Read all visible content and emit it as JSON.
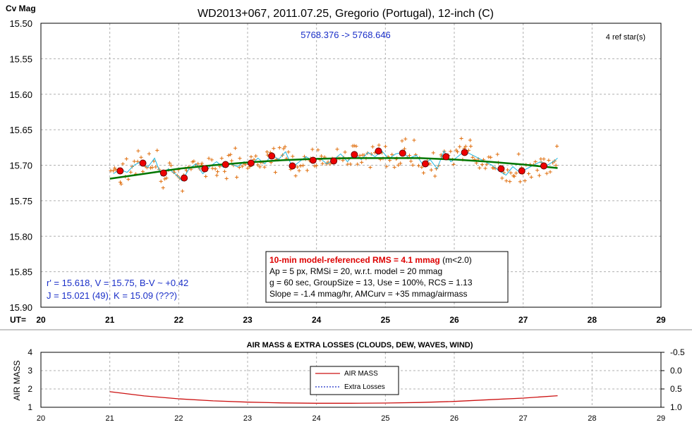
{
  "colors": {
    "frame": "#000000",
    "grid": "#b0b0b0",
    "scatter": "#e07010",
    "binned_fill": "#ee0000",
    "binned_stroke": "#6a0000",
    "smooth_line": "#22b8e0",
    "model_line": "#007700",
    "info_blue": "#1a2fc8",
    "rms_red": "#dd0000",
    "airmass_line": "#cc1111",
    "losses_line": "#1a2fc8"
  },
  "main_chart": {
    "title": "WD2013+067, 2011.07.25, Gregorio (Portugal), 12-inch (C)",
    "ylabel": "Cv Mag",
    "xlabel": "UT=",
    "x_ticks": [
      "20",
      "21",
      "22",
      "23",
      "24",
      "25",
      "26",
      "27",
      "28",
      "29"
    ],
    "y_ticks": [
      "15.50",
      "15.55",
      "15.60",
      "15.65",
      "15.70",
      "15.75",
      "15.80",
      "15.85",
      "15.90"
    ],
    "jd_range": "5768.376 -> 5768.646",
    "ref_stars": "4 ref star(s)",
    "mags_line1": "r' = 15.618, V = 15.75, B-V ~ +0.42",
    "mags_line2": "J = 15.021 (49), K = 15.09  (???)",
    "info": {
      "rms_headline": "10-min model-referenced RMS = 4.1 mmag",
      "rms_note": " (m<2.0)",
      "line2": "Ap = 5 px, RMSi = 20, w.r.t. model = 20 mmag",
      "line3": "g = 60 sec, GroupSize = 13, Use = 100%, RCS = 1.13",
      "line4": "Slope = -1.4 mmag/hr, AMCurv = +35 mmag/airmass"
    }
  },
  "air_chart": {
    "title": "AIR MASS & EXTRA LOSSES (CLOUDS, DEW, WAVES, WIND)",
    "ylabel": "AIR MASS",
    "x_ticks": [
      "20",
      "21",
      "22",
      "23",
      "24",
      "25",
      "26",
      "27",
      "28",
      "29"
    ],
    "y_ticks_left": [
      "1",
      "2",
      "3",
      "4"
    ],
    "y_ticks_right": [
      "1.0",
      "0.5",
      "0.0",
      "-0.5"
    ],
    "legend": [
      "AIR MASS",
      "Extra Losses"
    ]
  },
  "chart_data": [
    {
      "type": "scatter",
      "title": "WD2013+067, 2011.07.25, Gregorio (Portugal), 12-inch (C)",
      "xlabel": "UT=",
      "ylabel": "Cv Mag",
      "xlim": [
        20,
        29
      ],
      "ylim": [
        15.5,
        15.9
      ],
      "y_inverted": true,
      "grid": true,
      "series": [
        {
          "kind": "binned",
          "x": [
            21.15,
            21.48,
            21.78,
            22.08,
            22.38,
            22.68,
            23.05,
            23.35,
            23.65,
            23.95,
            24.25,
            24.55,
            24.9,
            25.25,
            25.58,
            25.88,
            26.15,
            26.68,
            26.98,
            27.3
          ],
          "y": [
            15.708,
            15.697,
            15.711,
            15.718,
            15.705,
            15.699,
            15.697,
            15.687,
            15.701,
            15.693,
            15.694,
            15.685,
            15.68,
            15.683,
            15.698,
            15.688,
            15.682,
            15.705,
            15.708,
            15.701
          ]
        },
        {
          "kind": "model",
          "x": [
            21.0,
            21.5,
            22.0,
            22.5,
            23.0,
            23.5,
            24.0,
            24.5,
            25.0,
            25.5,
            26.0,
            26.5,
            27.0,
            27.5
          ],
          "y": [
            15.719,
            15.712,
            15.705,
            15.7,
            15.696,
            15.693,
            15.691,
            15.69,
            15.69,
            15.69,
            15.692,
            15.695,
            15.699,
            15.704
          ]
        },
        {
          "kind": "smoothed",
          "x": [
            21.05,
            21.15,
            21.25,
            21.35,
            21.45,
            21.55,
            21.65,
            21.75,
            21.85,
            21.95,
            22.05,
            22.15,
            22.25,
            22.35,
            22.45,
            22.55,
            22.65,
            22.75,
            22.85,
            22.95,
            23.05,
            23.15,
            23.25,
            23.35,
            23.45,
            23.55,
            23.65,
            23.75,
            23.85,
            23.95,
            24.05,
            24.15,
            24.25,
            24.35,
            24.45,
            24.55,
            24.65,
            24.75,
            24.85,
            24.95,
            25.05,
            25.15,
            25.25,
            25.35,
            25.45,
            25.55,
            25.65,
            25.75,
            25.85,
            25.95,
            26.05,
            26.15,
            26.25,
            26.35,
            26.45,
            26.55,
            26.65,
            26.75,
            26.85,
            26.95,
            27.05,
            27.15,
            27.25,
            27.35,
            27.45,
            27.5
          ],
          "y": [
            15.712,
            15.706,
            15.71,
            15.7,
            15.695,
            15.703,
            15.69,
            15.715,
            15.705,
            15.712,
            15.722,
            15.705,
            15.698,
            15.712,
            15.702,
            15.695,
            15.703,
            15.698,
            15.702,
            15.695,
            15.7,
            15.69,
            15.698,
            15.685,
            15.692,
            15.681,
            15.703,
            15.695,
            15.688,
            15.694,
            15.69,
            15.698,
            15.692,
            15.684,
            15.695,
            15.683,
            15.692,
            15.682,
            15.688,
            15.68,
            15.691,
            15.684,
            15.682,
            15.69,
            15.686,
            15.7,
            15.692,
            15.705,
            15.68,
            15.695,
            15.688,
            15.68,
            15.685,
            15.69,
            15.695,
            15.7,
            15.708,
            15.714,
            15.702,
            15.71,
            15.705,
            15.7,
            15.695,
            15.7,
            15.694,
            15.69
          ]
        }
      ]
    },
    {
      "type": "line",
      "title": "AIR MASS & EXTRA LOSSES (CLOUDS, DEW, WAVES, WIND)",
      "ylabel": "AIR MASS",
      "xlim": [
        20,
        29
      ],
      "ylim": [
        1,
        4
      ],
      "y2lim": [
        1.0,
        -0.5
      ],
      "grid": true,
      "legend_position": "center",
      "series": [
        {
          "name": "AIR MASS",
          "x": [
            21.0,
            21.5,
            22.0,
            22.5,
            23.0,
            23.5,
            24.0,
            24.5,
            25.0,
            25.5,
            26.0,
            26.5,
            27.0,
            27.5
          ],
          "y": [
            1.85,
            1.62,
            1.46,
            1.35,
            1.28,
            1.24,
            1.22,
            1.22,
            1.23,
            1.26,
            1.32,
            1.41,
            1.5,
            1.63
          ]
        },
        {
          "name": "Extra Losses",
          "x": [],
          "y": []
        }
      ]
    }
  ]
}
